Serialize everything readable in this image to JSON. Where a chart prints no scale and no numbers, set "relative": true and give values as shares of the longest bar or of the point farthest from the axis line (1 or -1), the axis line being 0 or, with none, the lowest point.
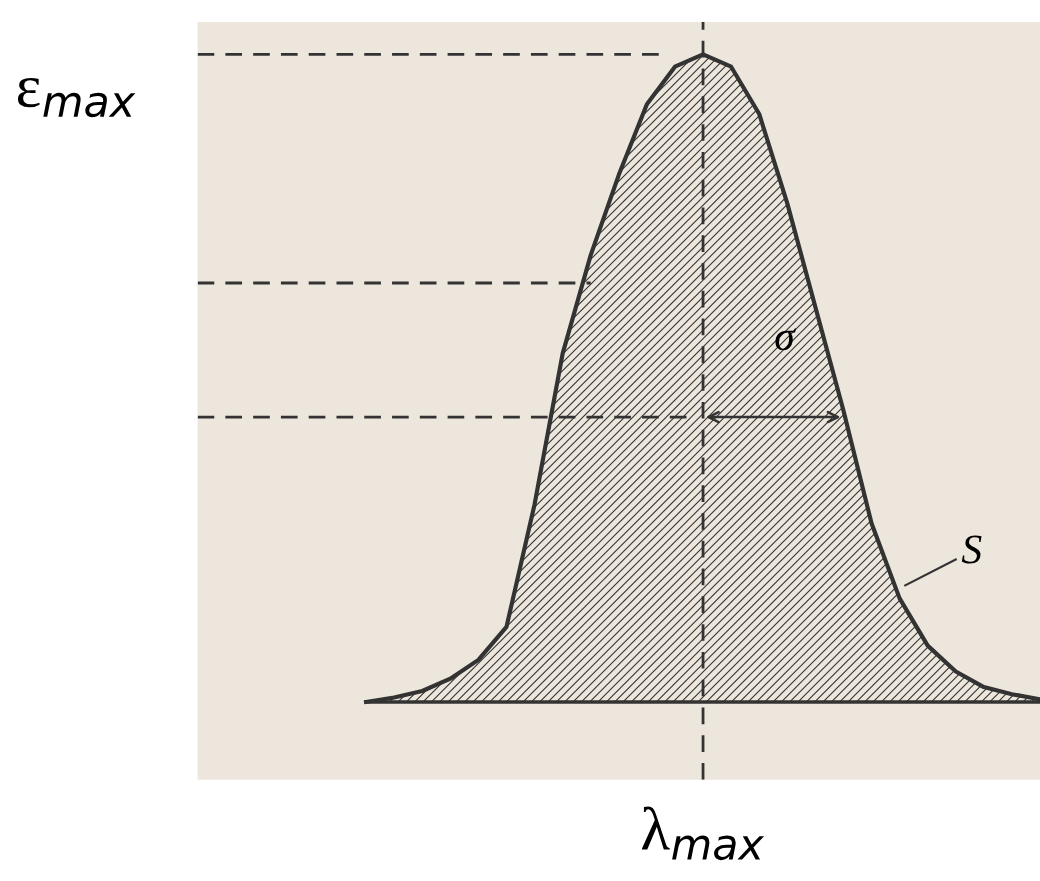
{
  "chart_data": {
    "type": "area",
    "relative": true,
    "color": "#333333",
    "categories": [
      null,
      null,
      null,
      null,
      null,
      null,
      null,
      null,
      null,
      null,
      null,
      null,
      null,
      null,
      null,
      null,
      null,
      null,
      null,
      null,
      null,
      null,
      null,
      null,
      null
    ],
    "values": [
      0,
      0.007,
      0.017,
      0.036,
      0.065,
      0.116,
      0.305,
      0.538,
      0.69,
      0.814,
      0.923,
      0.981,
      1,
      0.981,
      0.908,
      0.77,
      0.61,
      0.45,
      0.276,
      0.16,
      0.087,
      0.047,
      0.023,
      0.012,
      0.004
    ],
    "ref_lines": [
      {
        "axis": "y",
        "value": 1,
        "label": "ε$_{max}$",
        "line_style": "dashed"
      },
      {
        "axis": "y",
        "value": 0.647,
        "label": null,
        "line_style": "dashed"
      },
      {
        "axis": "y",
        "value": 0.44,
        "label": null,
        "line_style": "dashed"
      }
    ],
    "annotations": [
      "λ$_{max}$",
      "σ",
      "S"
    ],
    "grid": false,
    "legend": false
  }
}
